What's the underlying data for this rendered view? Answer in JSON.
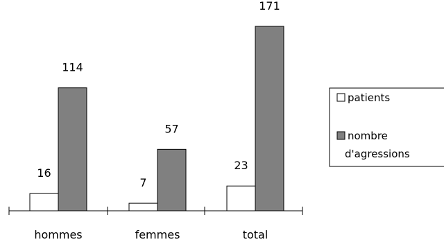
{
  "chart_data": {
    "type": "bar",
    "categories": [
      "hommes",
      "femmes",
      "total"
    ],
    "series": [
      {
        "name": "patients",
        "values": [
          16,
          7,
          23
        ],
        "color": "#ffffff"
      },
      {
        "name": "nombre d'agressions",
        "values": [
          114,
          57,
          171
        ],
        "color": "#808080"
      }
    ],
    "ylim": [
      0,
      171
    ],
    "grid": false,
    "legend_position": "right",
    "legend_labels": [
      "patients",
      "nombre",
      "d'agressions"
    ]
  }
}
